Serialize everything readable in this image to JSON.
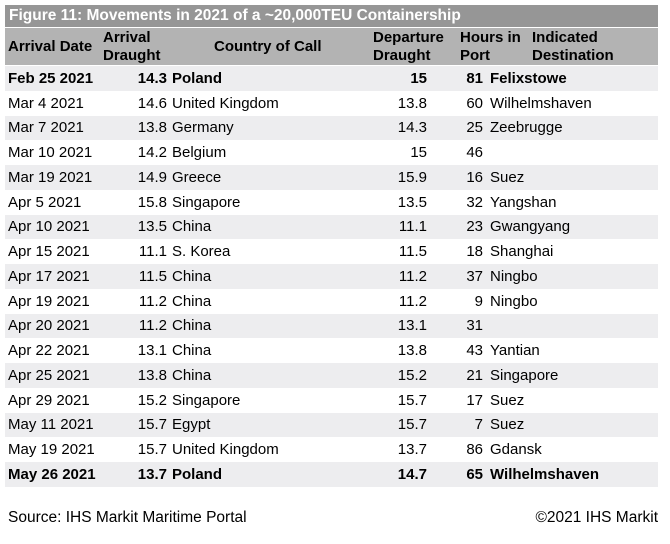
{
  "title": "Figure 11: Movements in 2021 of a ~20,000TEU Containership",
  "footer": {
    "source": "Source: IHS Markit Maritime Portal",
    "copyright": "©2021 IHS Markit"
  },
  "colors": {
    "title_bar_bg": "#969696",
    "title_text": "#ffffff",
    "header_bg": "#b3b3b3",
    "stripe_bg": "#ededef",
    "body_text": "#000000"
  },
  "chart_data": {
    "type": "table",
    "title": "Figure 11: Movements in 2021 of a ~20,000TEU Containership",
    "columns": [
      "Arrival Date",
      "Arrival Draught",
      "Country of Call",
      "Departure Draught",
      "Hours in Port",
      "Indicated Destination"
    ],
    "rows": [
      {
        "arrival_date": "Feb 25 2021",
        "arrival_draught": 14.3,
        "country_of_call": "Poland",
        "departure_draught": 15,
        "hours_in_port": 81,
        "indicated_destination": "Felixstowe",
        "bold": true
      },
      {
        "arrival_date": "Mar 4 2021",
        "arrival_draught": 14.6,
        "country_of_call": "United Kingdom",
        "departure_draught": 13.8,
        "hours_in_port": 60,
        "indicated_destination": "Wilhelmshaven",
        "bold": false
      },
      {
        "arrival_date": "Mar 7 2021",
        "arrival_draught": 13.8,
        "country_of_call": "Germany",
        "departure_draught": 14.3,
        "hours_in_port": 25,
        "indicated_destination": "Zeebrugge",
        "bold": false
      },
      {
        "arrival_date": "Mar 10 2021",
        "arrival_draught": 14.2,
        "country_of_call": "Belgium",
        "departure_draught": 15,
        "hours_in_port": 46,
        "indicated_destination": "",
        "bold": false
      },
      {
        "arrival_date": "Mar 19 2021",
        "arrival_draught": 14.9,
        "country_of_call": "Greece",
        "departure_draught": 15.9,
        "hours_in_port": 16,
        "indicated_destination": "Suez",
        "bold": false
      },
      {
        "arrival_date": "Apr 5 2021",
        "arrival_draught": 15.8,
        "country_of_call": "Singapore",
        "departure_draught": 13.5,
        "hours_in_port": 32,
        "indicated_destination": "Yangshan",
        "bold": false
      },
      {
        "arrival_date": "Apr 10 2021",
        "arrival_draught": 13.5,
        "country_of_call": "China",
        "departure_draught": 11.1,
        "hours_in_port": 23,
        "indicated_destination": "Gwangyang",
        "bold": false
      },
      {
        "arrival_date": "Apr 15 2021",
        "arrival_draught": 11.1,
        "country_of_call": "S. Korea",
        "departure_draught": 11.5,
        "hours_in_port": 18,
        "indicated_destination": "Shanghai",
        "bold": false
      },
      {
        "arrival_date": "Apr 17 2021",
        "arrival_draught": 11.5,
        "country_of_call": "China",
        "departure_draught": 11.2,
        "hours_in_port": 37,
        "indicated_destination": "Ningbo",
        "bold": false
      },
      {
        "arrival_date": "Apr 19 2021",
        "arrival_draught": 11.2,
        "country_of_call": "China",
        "departure_draught": 11.2,
        "hours_in_port": 9,
        "indicated_destination": "Ningbo",
        "bold": false
      },
      {
        "arrival_date": "Apr 20 2021",
        "arrival_draught": 11.2,
        "country_of_call": "China",
        "departure_draught": 13.1,
        "hours_in_port": 31,
        "indicated_destination": "",
        "bold": false
      },
      {
        "arrival_date": "Apr 22 2021",
        "arrival_draught": 13.1,
        "country_of_call": "China",
        "departure_draught": 13.8,
        "hours_in_port": 43,
        "indicated_destination": "Yantian",
        "bold": false
      },
      {
        "arrival_date": "Apr 25 2021",
        "arrival_draught": 13.8,
        "country_of_call": "China",
        "departure_draught": 15.2,
        "hours_in_port": 21,
        "indicated_destination": "Singapore",
        "bold": false
      },
      {
        "arrival_date": "Apr 29 2021",
        "arrival_draught": 15.2,
        "country_of_call": "Singapore",
        "departure_draught": 15.7,
        "hours_in_port": 17,
        "indicated_destination": "Suez",
        "bold": false
      },
      {
        "arrival_date": "May 11 2021",
        "arrival_draught": 15.7,
        "country_of_call": "Egypt",
        "departure_draught": 15.7,
        "hours_in_port": 7,
        "indicated_destination": "Suez",
        "bold": false
      },
      {
        "arrival_date": "May 19 2021",
        "arrival_draught": 15.7,
        "country_of_call": "United Kingdom",
        "departure_draught": 13.7,
        "hours_in_port": 86,
        "indicated_destination": "Gdansk",
        "bold": false
      },
      {
        "arrival_date": "May 26 2021",
        "arrival_draught": 13.7,
        "country_of_call": "Poland",
        "departure_draught": 14.7,
        "hours_in_port": 65,
        "indicated_destination": "Wilhelmshaven",
        "bold": true
      }
    ]
  }
}
